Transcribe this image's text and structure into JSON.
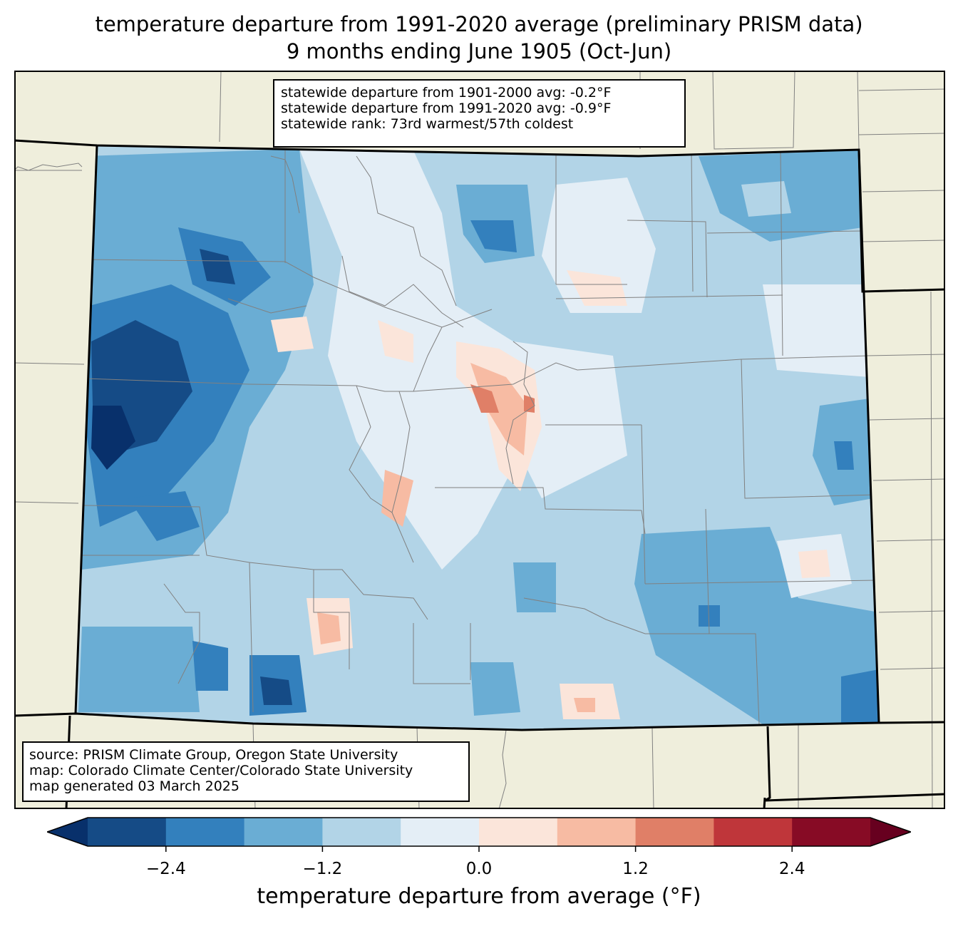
{
  "title": {
    "line1": "temperature departure from 1991-2020 average (preliminary PRISM data)",
    "line2": "9 months ending June 1905 (Oct-Jun)"
  },
  "stats_box": {
    "line1": "statewide departure from 1901-2000 avg: -0.2°F",
    "line2": "statewide departure from 1991-2020 avg: -0.9°F",
    "line3": "statewide rank: 73rd warmest/57th coldest"
  },
  "source_box": {
    "line1": "source: PRISM Climate Group, Oregon State University",
    "line2": "map: Colorado Climate Center/Colorado State University",
    "line3": "map generated 03 March 2025"
  },
  "colorbar": {
    "label": "temperature departure from average (°F)",
    "bounds": [
      -3.0,
      -2.4,
      -1.8,
      -1.2,
      -0.6,
      0.0,
      0.6,
      1.2,
      1.8,
      2.4,
      3.0
    ],
    "colors": [
      "#08306b",
      "#154b86",
      "#3380bd",
      "#6aadd4",
      "#b2d4e7",
      "#e4eef6",
      "#fbe5da",
      "#f7bba3",
      "#e07f67",
      "#bf363a",
      "#870b25",
      "#67001f"
    ],
    "ticks": [
      "−2.4",
      "−1.2",
      "0.0",
      "1.2",
      "2.4"
    ],
    "tick_values": [
      -2.4,
      -1.2,
      0.0,
      1.2,
      2.4
    ]
  },
  "colors": {
    "land": "#efeedc",
    "county_lines": "#808080",
    "state_lines": "#000000"
  }
}
